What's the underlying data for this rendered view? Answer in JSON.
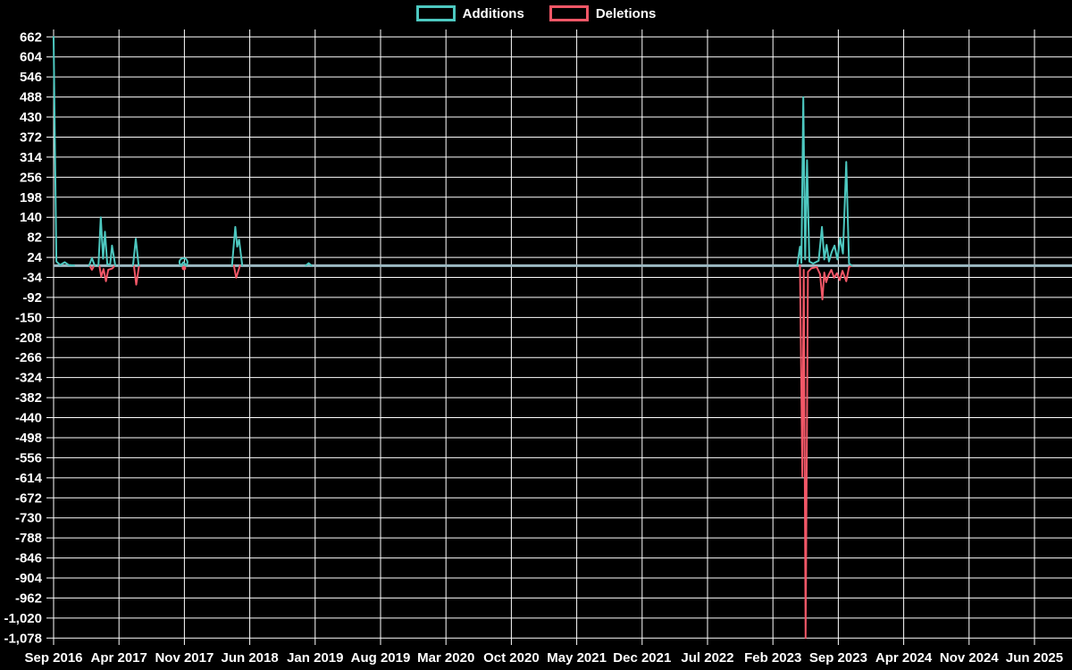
{
  "legend": {
    "additions_label": "Additions",
    "deletions_label": "Deletions"
  },
  "colors": {
    "additions": "#4dc8c0",
    "deletions": "#f25767",
    "baseline": "#9cb9c2",
    "grid": "#ffffff",
    "text": "#ffffff",
    "background": "#000000"
  },
  "chart_data": {
    "type": "line",
    "title": "",
    "xlabel": "",
    "ylabel": "",
    "legend_position": "top-center",
    "grid": true,
    "x_unit": "months since Sep 2016; one x gridline every 7 months",
    "x_tick_labels": [
      "Sep 2016",
      "Apr 2017",
      "Nov 2017",
      "Jun 2018",
      "Jan 2019",
      "Aug 2019",
      "Mar 2020",
      "Oct 2020",
      "May 2021",
      "Dec 2021",
      "Jul 2022",
      "Feb 2023",
      "Sep 2023",
      "Apr 2024",
      "Nov 2024",
      "Jun 2025"
    ],
    "y_ticks": [
      662,
      604,
      546,
      488,
      430,
      372,
      314,
      256,
      198,
      140,
      82,
      24,
      -34,
      -92,
      -150,
      -208,
      -266,
      -324,
      -382,
      -440,
      -498,
      -556,
      -614,
      -672,
      -730,
      -788,
      -846,
      -904,
      -962,
      -1020,
      -1078
    ],
    "ylim": [
      -1078,
      662
    ],
    "y_step": 58,
    "baseline_value": 0,
    "series": [
      {
        "name": "Additions",
        "color_key": "additions",
        "segments": [
          [
            [
              0,
              662
            ],
            [
              0.3,
              12
            ],
            [
              0.7,
              2
            ],
            [
              1.2,
              10
            ],
            [
              1.6,
              2
            ],
            [
              2.2,
              0
            ]
          ],
          [
            [
              3.8,
              0
            ],
            [
              4.1,
              22
            ],
            [
              4.4,
              0
            ]
          ],
          [
            [
              4.8,
              0
            ],
            [
              5.05,
              140
            ],
            [
              5.3,
              20
            ],
            [
              5.5,
              98
            ],
            [
              5.75,
              4
            ],
            [
              6.05,
              3
            ],
            [
              6.25,
              58
            ],
            [
              6.6,
              0
            ]
          ],
          [
            [
              8.5,
              0
            ],
            [
              8.8,
              78
            ],
            [
              9.1,
              0
            ]
          ],
          [
            [
              13.6,
              0
            ],
            [
              13.9,
              10
            ],
            [
              14.2,
              0
            ]
          ],
          [
            [
              19.1,
              0
            ],
            [
              19.45,
              112
            ],
            [
              19.65,
              55
            ],
            [
              19.85,
              75
            ],
            [
              20.2,
              0
            ]
          ],
          [
            [
              27.0,
              0
            ],
            [
              27.3,
              7
            ],
            [
              27.6,
              0
            ]
          ],
          [
            [
              79.6,
              0
            ],
            [
              79.9,
              55
            ],
            [
              80.05,
              8
            ],
            [
              80.25,
              488
            ],
            [
              80.45,
              18
            ],
            [
              80.65,
              305
            ],
            [
              80.9,
              12
            ],
            [
              81.3,
              6
            ],
            [
              81.9,
              14
            ],
            [
              82.25,
              112
            ],
            [
              82.5,
              18
            ],
            [
              82.75,
              60
            ],
            [
              83.0,
              12
            ],
            [
              83.3,
              40
            ],
            [
              83.6,
              58
            ],
            [
              83.9,
              18
            ],
            [
              84.2,
              80
            ],
            [
              84.5,
              35
            ],
            [
              84.85,
              300
            ],
            [
              85.15,
              6
            ],
            [
              85.45,
              0
            ]
          ]
        ]
      },
      {
        "name": "Deletions",
        "color_key": "deletions",
        "segments": [
          [
            [
              3.85,
              0
            ],
            [
              4.1,
              -12
            ],
            [
              4.35,
              0
            ]
          ],
          [
            [
              4.9,
              0
            ],
            [
              5.1,
              -32
            ],
            [
              5.35,
              -10
            ],
            [
              5.6,
              -45
            ],
            [
              5.85,
              -12
            ],
            [
              6.3,
              -8
            ],
            [
              6.55,
              0
            ]
          ],
          [
            [
              8.6,
              0
            ],
            [
              8.85,
              -55
            ],
            [
              9.15,
              0
            ]
          ],
          [
            [
              13.75,
              0
            ],
            [
              13.95,
              -7
            ],
            [
              14.15,
              0
            ]
          ],
          [
            [
              19.3,
              0
            ],
            [
              19.55,
              -35
            ],
            [
              19.95,
              0
            ]
          ],
          [
            [
              79.9,
              0
            ],
            [
              80.15,
              -610
            ],
            [
              80.3,
              -12
            ],
            [
              80.5,
              -1078
            ],
            [
              80.75,
              -18
            ],
            [
              81.1,
              -8
            ],
            [
              81.7,
              -4
            ],
            [
              82.05,
              -25
            ],
            [
              82.3,
              -98
            ],
            [
              82.5,
              -20
            ],
            [
              82.7,
              -48
            ],
            [
              82.95,
              -28
            ],
            [
              83.25,
              -12
            ],
            [
              83.55,
              -35
            ],
            [
              83.85,
              -22
            ],
            [
              84.15,
              -42
            ],
            [
              84.45,
              -15
            ],
            [
              84.85,
              -45
            ],
            [
              85.15,
              -4
            ],
            [
              85.45,
              0
            ]
          ]
        ]
      }
    ],
    "markers": [
      {
        "series": "Additions",
        "color_key": "additions",
        "shape": "ring",
        "x": 13.9,
        "y": 10
      },
      {
        "series": "Deletions",
        "color_key": "deletions",
        "shape": "dot",
        "x": 13.95,
        "y": -7
      }
    ]
  }
}
